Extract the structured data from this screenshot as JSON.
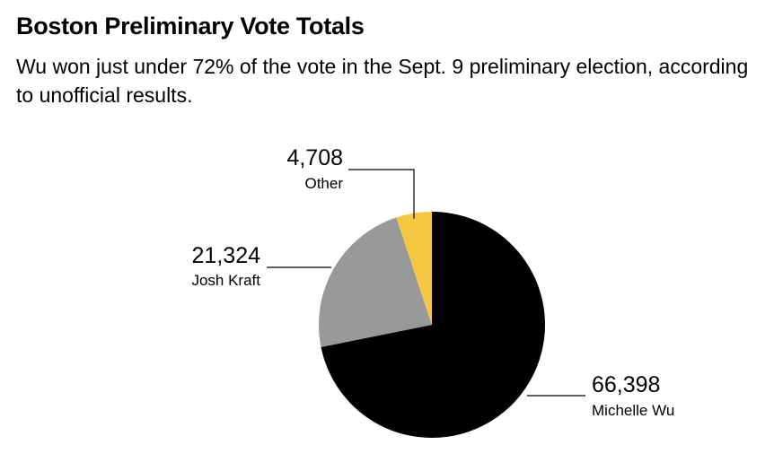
{
  "chart_data": {
    "type": "pie",
    "title": "Boston Preliminary Vote Totals",
    "subtitle": "Wu won just under 72% of the vote in the Sept. 9 preliminary election, according to unofficial results.",
    "slices": [
      {
        "name": "Michelle Wu",
        "value": 66398,
        "value_label": "66,398",
        "color": "#000000"
      },
      {
        "name": "Josh Kraft",
        "value": 21324,
        "value_label": "21,324",
        "color": "#999999"
      },
      {
        "name": "Other",
        "value": 4708,
        "value_label": "4,708",
        "color": "#F5C842"
      }
    ],
    "start": "12 o'clock",
    "direction": "clockwise"
  }
}
